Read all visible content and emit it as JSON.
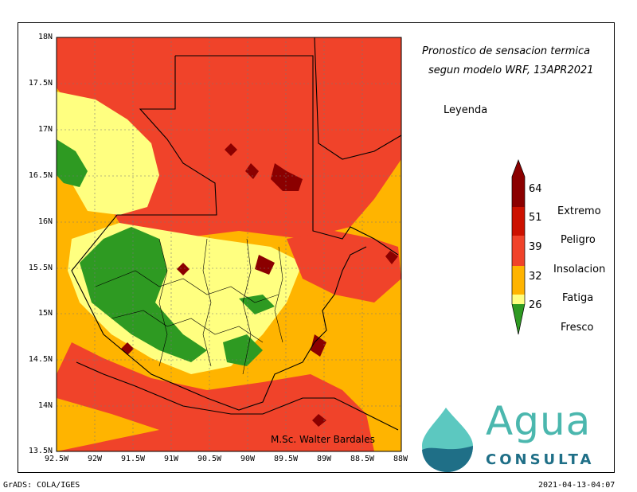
{
  "title_line1": "Pronostico de sensacion termica",
  "title_line2": "segun modelo WRF, 13APR2021",
  "legend_title": "Leyenda",
  "colorbar": {
    "ticks": [
      "64",
      "51",
      "39",
      "32",
      "26"
    ],
    "categories": [
      "Extremo",
      "Peligro",
      "Insolacion",
      "Fatiga",
      "Fresco"
    ],
    "colors": [
      "#8b0000",
      "#cc1100",
      "#f0432a",
      "#ffb400",
      "#ffff80",
      "#2e9a22"
    ]
  },
  "map": {
    "lat_labels": [
      "18N",
      "17.5N",
      "17N",
      "16.5N",
      "16N",
      "15.5N",
      "15N",
      "14.5N",
      "14N",
      "13.5N"
    ],
    "lon_labels": [
      "92.5W",
      "92W",
      "91.5W",
      "91W",
      "90.5W",
      "90W",
      "89.5W",
      "89W",
      "88.5W",
      "88W"
    ],
    "credit": "M.Sc. Walter Bardales"
  },
  "logo": {
    "word": "Agua",
    "sub": "CONSULTA"
  },
  "footer": {
    "left": "GrADS: COLA/IGES",
    "right": "2021-04-13-04:07"
  }
}
